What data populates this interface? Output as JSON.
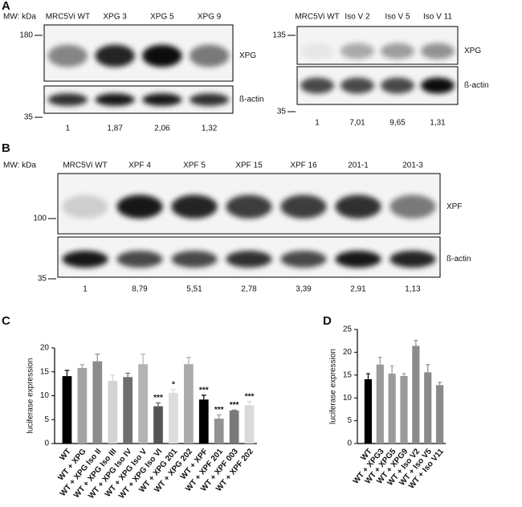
{
  "panels": {
    "a": {
      "label": "A",
      "left": {
        "mw_label": "MW: kDa",
        "lanes": [
          "MRC5Vi WT",
          "XPG 3",
          "XPG 5",
          "XPG 9"
        ],
        "markers": [
          "180",
          "35"
        ],
        "bands": [
          "XPG",
          "ß-actin"
        ],
        "ratios": [
          "1",
          "1,87",
          "2,06",
          "1,32"
        ]
      },
      "right": {
        "lanes": [
          "MRC5Vi WT",
          "Iso V 2",
          "Iso V 5",
          "Iso V 11"
        ],
        "markers": [
          "135",
          "35"
        ],
        "bands": [
          "XPG",
          "ß-actin"
        ],
        "ratios": [
          "1",
          "7,01",
          "9,65",
          "1,31"
        ]
      }
    },
    "b": {
      "label": "B",
      "mw_label": "MW: kDa",
      "lanes": [
        "MRC5Vi WT",
        "XPF 4",
        "XPF 5",
        "XPF 15",
        "XPF 16",
        "201-1",
        "201-3"
      ],
      "markers": [
        "100",
        "35"
      ],
      "bands": [
        "XPF",
        "ß-actin"
      ],
      "ratios": [
        "1",
        "8,79",
        "5,51",
        "2,78",
        "3,39",
        "2,91",
        "1,13"
      ]
    }
  },
  "chart_data": [
    {
      "type": "bar",
      "panel": "C",
      "ylabel": "luciferase expression",
      "categories": [
        "WT",
        "WT + XPG",
        "WT + XPG Iso II",
        "WT + XPG Iso III",
        "WT + XPG Iso IV",
        "WT + XPG Iso V",
        "WT + XPG Iso VI",
        "WT + XPG 201",
        "WT + XPG 202",
        "WT + XPF",
        "WT + XPF 201",
        "WT + XPF 003",
        "WT + XPF 202"
      ],
      "values": [
        14.1,
        15.8,
        17.2,
        13.1,
        13.9,
        16.6,
        7.8,
        10.6,
        16.6,
        9.2,
        5.2,
        6.9,
        8.0
      ],
      "errors": [
        1.2,
        0.7,
        1.5,
        1.2,
        0.8,
        2.1,
        0.7,
        0.7,
        1.4,
        0.9,
        0.8,
        0.1,
        0.8
      ],
      "significance": [
        null,
        null,
        null,
        null,
        null,
        null,
        "***",
        "*",
        null,
        "***",
        "***",
        "***",
        "***"
      ],
      "colors": [
        "#000000",
        "#a3a3a3",
        "#8c8c8c",
        "#d4d4d4",
        "#6e6e6e",
        "#b3b3b3",
        "#555555",
        "#dcdcdc",
        "#ababab",
        "#000000",
        "#939393",
        "#7a7a7a",
        "#dadada"
      ],
      "ylim": [
        0,
        20
      ],
      "yticks": [
        0,
        5,
        10,
        15,
        20
      ]
    },
    {
      "type": "bar",
      "panel": "D",
      "ylabel": "luciferase expression",
      "categories": [
        "WT",
        "WT + XPG3",
        "WT + XPG5",
        "WT + XPG9",
        "WT + Iso V2",
        "WT + Iso V5",
        "WT + Iso V11"
      ],
      "values": [
        14.1,
        17.3,
        15.3,
        14.8,
        21.4,
        15.6,
        12.8
      ],
      "errors": [
        1.2,
        1.6,
        1.7,
        0.5,
        1.2,
        1.7,
        0.6
      ],
      "colors": [
        "#000000",
        "#9a9a9a",
        "#9a9a9a",
        "#9a9a9a",
        "#8a8a8a",
        "#8a8a8a",
        "#8a8a8a"
      ],
      "ylim": [
        0,
        25
      ],
      "yticks": [
        0,
        5,
        10,
        15,
        20,
        25
      ]
    }
  ]
}
